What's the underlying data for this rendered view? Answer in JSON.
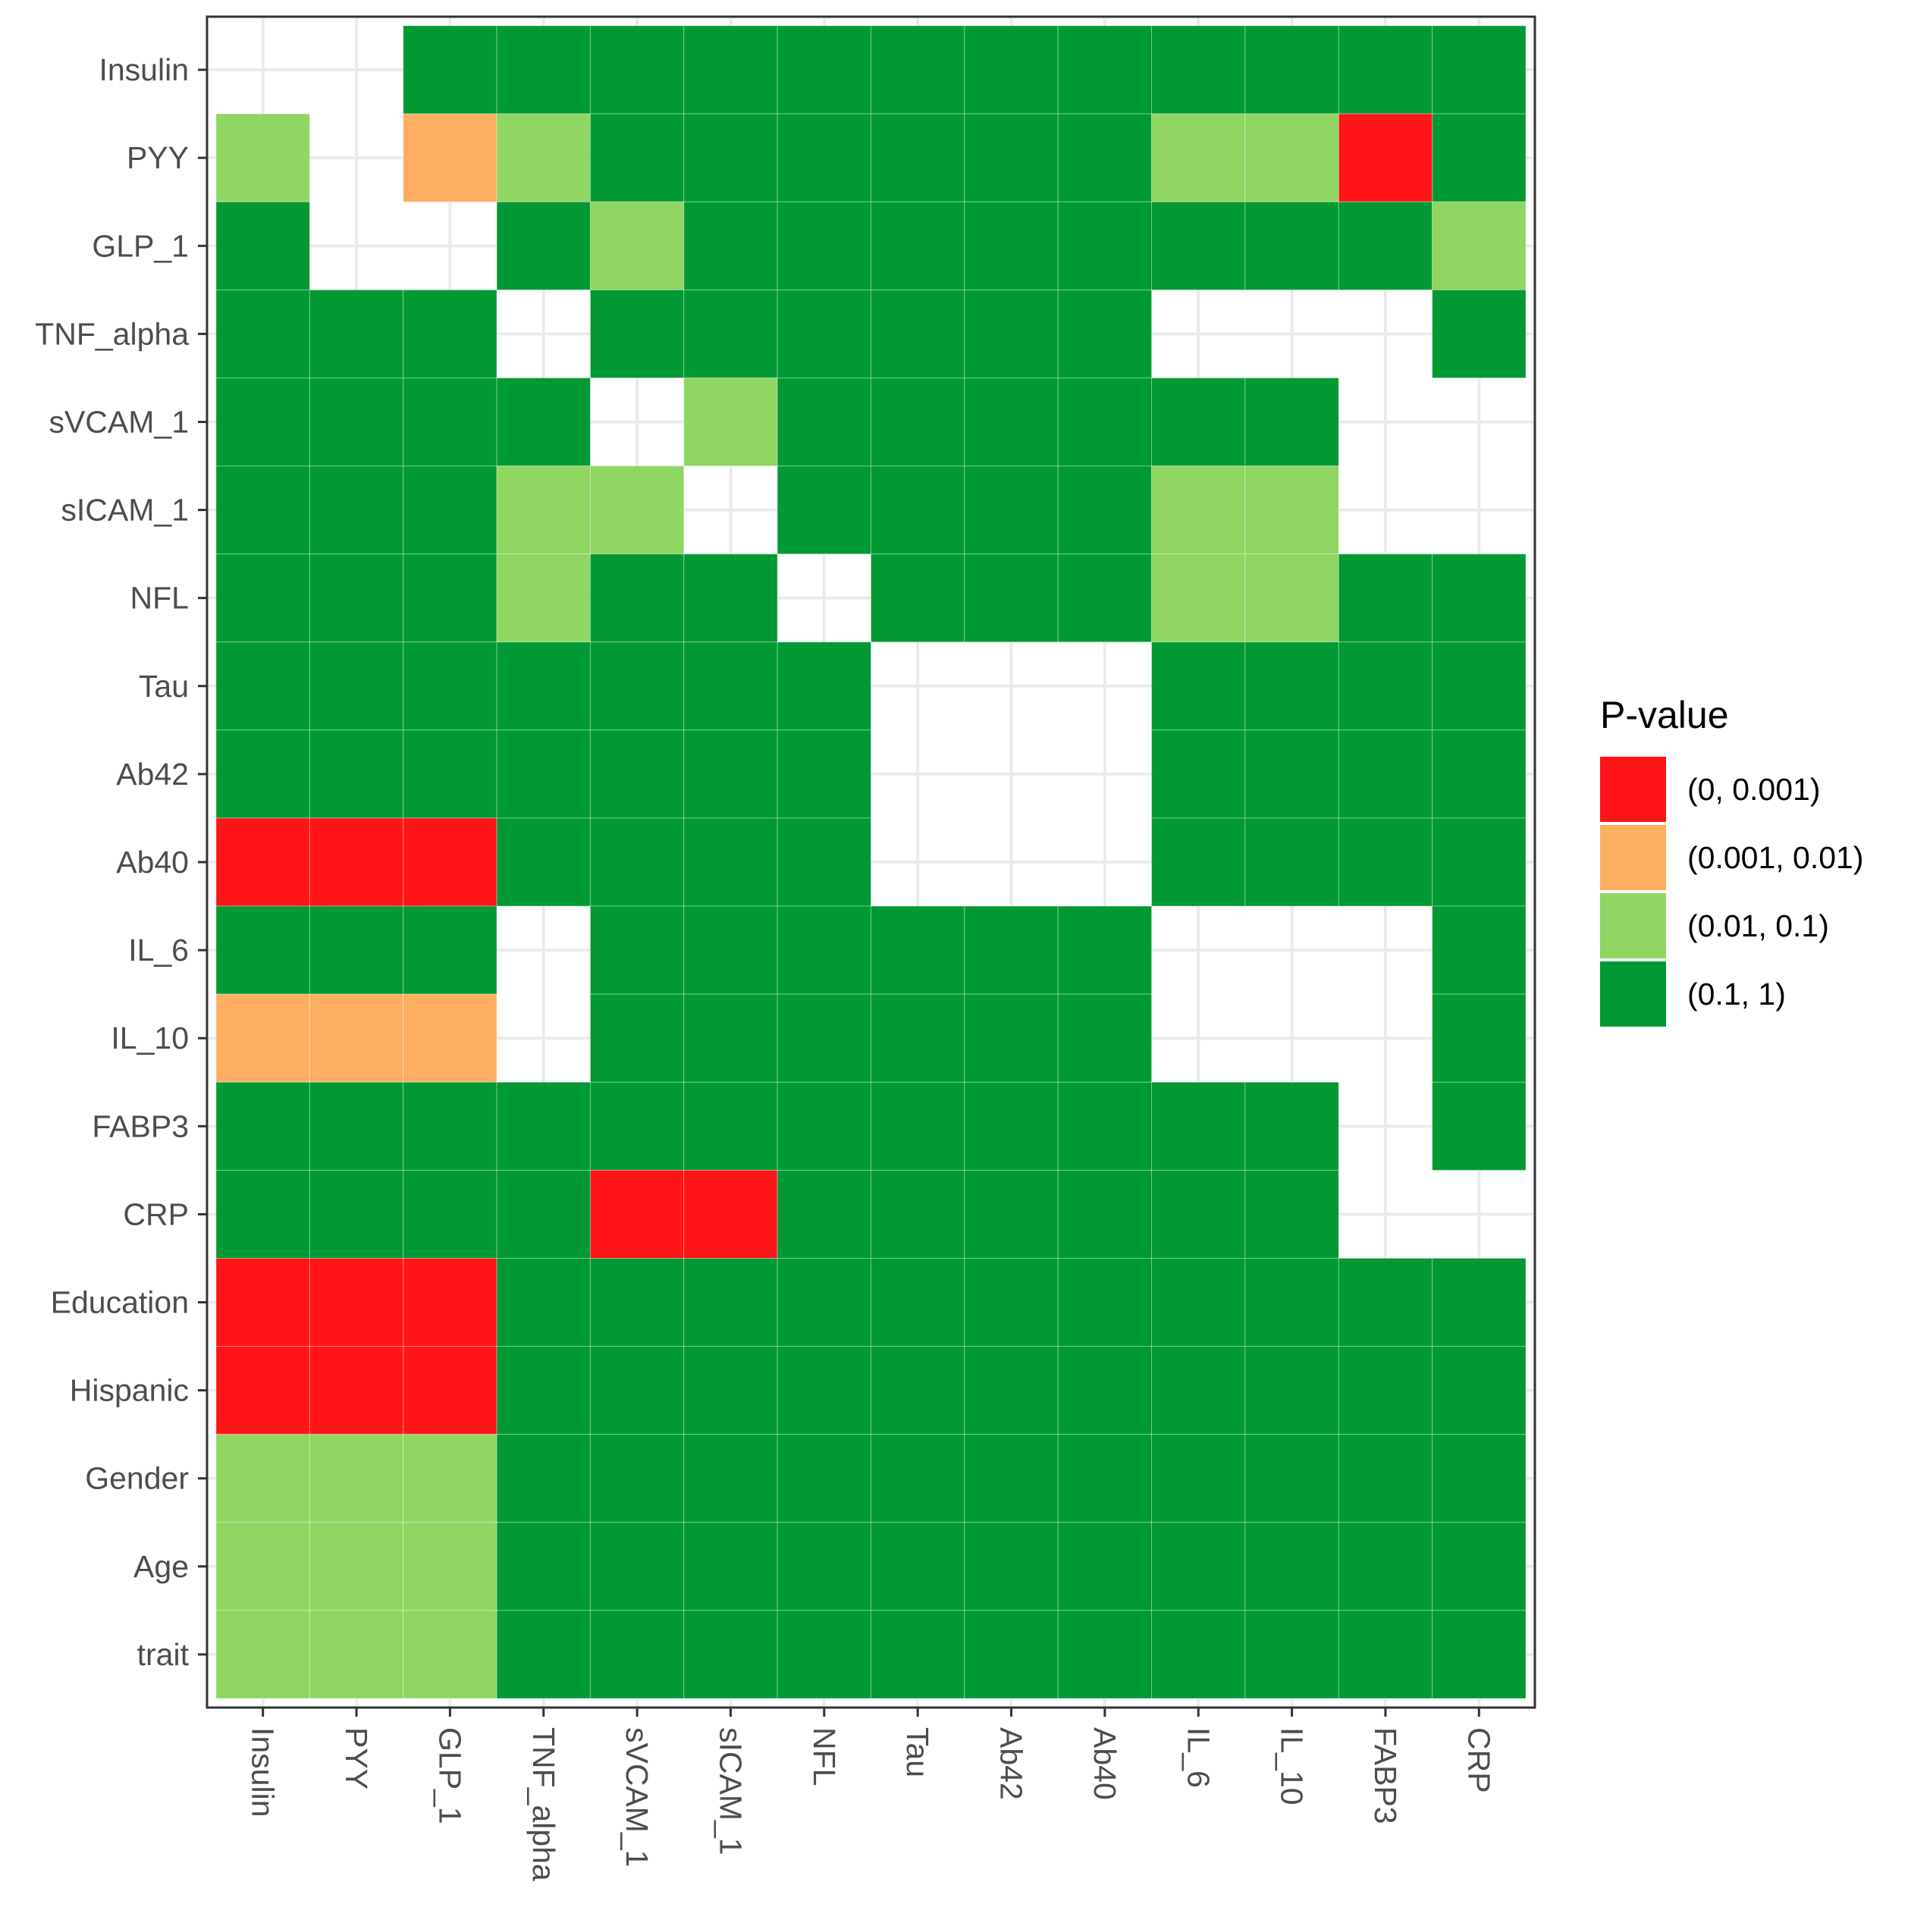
{
  "chart_data": {
    "type": "heatmap",
    "title": "",
    "xlabel": "",
    "ylabel": "",
    "x_categories": [
      "Insulin",
      "PYY",
      "GLP_1",
      "TNF_alpha",
      "sVCAM_1",
      "sICAM_1",
      "NFL",
      "Tau",
      "Ab42",
      "Ab40",
      "IL_6",
      "IL_10",
      "FABP3",
      "CRP"
    ],
    "y_categories": [
      "Insulin",
      "PYY",
      "GLP_1",
      "TNF_alpha",
      "sVCAM_1",
      "sICAM_1",
      "NFL",
      "Tau",
      "Ab42",
      "Ab40",
      "IL_6",
      "IL_10",
      "FABP3",
      "CRP",
      "Education",
      "Hispanic",
      "Gender",
      "Age",
      "trait"
    ],
    "legend": {
      "title": "P-value",
      "placement": "right",
      "entries": [
        {
          "code": 3,
          "label": "(0, 0.001)",
          "color": "#FF1417"
        },
        {
          "code": 2,
          "label": "(0.001, 0.01)",
          "color": "#FDAE61"
        },
        {
          "code": 1,
          "label": "(0.01, 0.1)",
          "color": "#8FD662"
        },
        {
          "code": 0,
          "label": "(0.1, 1)",
          "color": "#009933"
        }
      ]
    },
    "grid": true,
    "cell_code_note_values": "null = empty cell; 0..3 = legend entry code",
    "rows": [
      [
        null,
        null,
        0,
        0,
        0,
        0,
        0,
        0,
        0,
        0,
        0,
        0,
        0,
        0
      ],
      [
        1,
        null,
        2,
        1,
        0,
        0,
        0,
        0,
        0,
        0,
        1,
        1,
        3,
        0
      ],
      [
        0,
        null,
        null,
        0,
        1,
        0,
        0,
        0,
        0,
        0,
        0,
        0,
        0,
        1
      ],
      [
        0,
        0,
        0,
        null,
        0,
        0,
        0,
        0,
        0,
        0,
        null,
        null,
        null,
        0
      ],
      [
        0,
        0,
        0,
        0,
        null,
        1,
        0,
        0,
        0,
        0,
        0,
        0,
        null,
        null
      ],
      [
        0,
        0,
        0,
        1,
        1,
        null,
        0,
        0,
        0,
        0,
        1,
        1,
        null,
        null
      ],
      [
        0,
        0,
        0,
        1,
        0,
        0,
        null,
        0,
        0,
        0,
        1,
        1,
        0,
        0
      ],
      [
        0,
        0,
        0,
        0,
        0,
        0,
        0,
        null,
        null,
        null,
        0,
        0,
        0,
        0
      ],
      [
        0,
        0,
        0,
        0,
        0,
        0,
        0,
        null,
        null,
        null,
        0,
        0,
        0,
        0
      ],
      [
        3,
        3,
        3,
        0,
        0,
        0,
        0,
        null,
        null,
        null,
        0,
        0,
        0,
        0
      ],
      [
        0,
        0,
        0,
        null,
        0,
        0,
        0,
        0,
        0,
        0,
        null,
        null,
        null,
        0
      ],
      [
        2,
        2,
        2,
        null,
        0,
        0,
        0,
        0,
        0,
        0,
        null,
        null,
        null,
        0
      ],
      [
        0,
        0,
        0,
        0,
        0,
        0,
        0,
        0,
        0,
        0,
        0,
        0,
        null,
        0
      ],
      [
        0,
        0,
        0,
        0,
        3,
        3,
        0,
        0,
        0,
        0,
        0,
        0,
        null,
        null
      ],
      [
        3,
        3,
        3,
        0,
        0,
        0,
        0,
        0,
        0,
        0,
        0,
        0,
        0,
        0
      ],
      [
        3,
        3,
        3,
        0,
        0,
        0,
        0,
        0,
        0,
        0,
        0,
        0,
        0,
        0
      ],
      [
        1,
        1,
        1,
        0,
        0,
        0,
        0,
        0,
        0,
        0,
        0,
        0,
        0,
        0
      ],
      [
        1,
        1,
        1,
        0,
        0,
        0,
        0,
        0,
        0,
        0,
        0,
        0,
        0,
        0
      ],
      [
        1,
        1,
        1,
        0,
        0,
        0,
        0,
        0,
        0,
        0,
        0,
        0,
        0,
        0
      ]
    ]
  }
}
